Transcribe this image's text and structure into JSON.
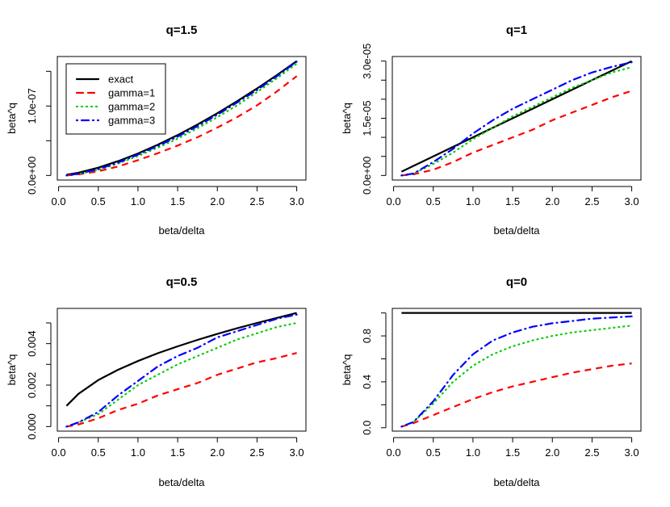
{
  "legend": {
    "entries": [
      {
        "label": "exact",
        "color": "#000000",
        "style": "solid"
      },
      {
        "label": "gamma=1",
        "color": "#FF0000",
        "style": "dashed"
      },
      {
        "label": "gamma=2",
        "color": "#00CD00",
        "style": "dotted"
      },
      {
        "label": "gamma=3",
        "color": "#0000FF",
        "style": "dotdash"
      }
    ],
    "placement": "top-left of first panel"
  },
  "chart_data": [
    {
      "type": "line",
      "title": "q=1.5",
      "xlabel": "beta/delta",
      "ylabel": "beta^q",
      "x": [
        0.1,
        0.25,
        0.5,
        0.75,
        1.0,
        1.25,
        1.5,
        1.75,
        2.0,
        2.25,
        2.5,
        2.75,
        3.0
      ],
      "xticks": [
        "0.0",
        "0.5",
        "1.0",
        "1.5",
        "2.0",
        "2.5",
        "3.0"
      ],
      "yticks": [
        0,
        5e-08,
        1e-07,
        1.5e-07
      ],
      "ytick_labels": [
        {
          "value": 0,
          "label": "0.0e+00"
        },
        {
          "value": 1e-07,
          "label": "1.0e-07"
        }
      ],
      "series": [
        {
          "name": "exact",
          "values": [
            1e-09,
            4e-09,
            1.12e-08,
            2.06e-08,
            3.17e-08,
            4.43e-08,
            5.82e-08,
            7.34e-08,
            8.97e-08,
            1.07e-07,
            1.253e-07,
            1.446e-07,
            1.647e-07
          ]
        },
        {
          "name": "gamma=1",
          "values": [
            0,
            1.5e-09,
            6e-09,
            1.3e-08,
            2.2e-08,
            3.2e-08,
            4.3e-08,
            5.5e-08,
            6.9e-08,
            8.4e-08,
            1.01e-07,
            1.21e-07,
            1.43e-07
          ]
        },
        {
          "name": "gamma=2",
          "values": [
            0,
            2e-09,
            8e-09,
            1.7e-08,
            2.8e-08,
            4e-08,
            5.3e-08,
            6.8e-08,
            8.4e-08,
            1.01e-07,
            1.2e-07,
            1.4e-07,
            1.61e-07
          ]
        },
        {
          "name": "gamma=3",
          "values": [
            0,
            2.5e-09,
            9e-09,
            1.85e-08,
            3e-08,
            4.25e-08,
            5.6e-08,
            7.1e-08,
            8.75e-08,
            1.05e-07,
            1.23e-07,
            1.43e-07,
            1.64e-07
          ]
        }
      ],
      "grid": false
    },
    {
      "type": "line",
      "title": "q=1",
      "xlabel": "beta/delta",
      "ylabel": "beta^q",
      "x": [
        0.1,
        0.25,
        0.5,
        0.75,
        1.0,
        1.25,
        1.5,
        1.75,
        2.0,
        2.25,
        2.5,
        2.75,
        3.0
      ],
      "xticks": [
        "0.0",
        "0.5",
        "1.0",
        "1.5",
        "2.0",
        "2.5",
        "3.0"
      ],
      "yticks": [
        0,
        5e-06,
        1e-05,
        1.5e-05,
        2e-05,
        2.5e-05,
        3e-05
      ],
      "ytick_labels": [
        {
          "value": 0,
          "label": "0.0e+00"
        },
        {
          "value": 1.5e-05,
          "label": "1.5e-05"
        },
        {
          "value": 3e-05,
          "label": "3.0e-05"
        }
      ],
      "series": [
        {
          "name": "exact",
          "values": [
            1e-06,
            2.5e-06,
            5e-06,
            7.5e-06,
            1e-05,
            1.25e-05,
            1.5e-05,
            1.75e-05,
            2e-05,
            2.25e-05,
            2.5e-05,
            2.75e-05,
            3e-05
          ]
        },
        {
          "name": "gamma=1",
          "values": [
            0,
            3e-07,
            1.5e-06,
            3.5e-06,
            6e-06,
            8e-06,
            1e-05,
            1.2e-05,
            1.45e-05,
            1.65e-05,
            1.85e-05,
            2.05e-05,
            2.22e-05
          ]
        },
        {
          "name": "gamma=2",
          "values": [
            0,
            5e-07,
            3e-06,
            6e-06,
            9.5e-06,
            1.25e-05,
            1.55e-05,
            1.8e-05,
            2.05e-05,
            2.3e-05,
            2.5e-05,
            2.7e-05,
            2.84e-05
          ]
        },
        {
          "name": "gamma=3",
          "values": [
            0,
            5e-07,
            3.5e-06,
            7e-06,
            1.1e-05,
            1.45e-05,
            1.75e-05,
            2e-05,
            2.25e-05,
            2.5e-05,
            2.7e-05,
            2.85e-05,
            2.97e-05
          ]
        }
      ],
      "grid": false
    },
    {
      "type": "line",
      "title": "q=0.5",
      "xlabel": "beta/delta",
      "ylabel": "beta^q",
      "x": [
        0.1,
        0.25,
        0.5,
        0.75,
        1.0,
        1.25,
        1.5,
        1.75,
        2.0,
        2.25,
        2.5,
        2.75,
        3.0
      ],
      "xticks": [
        "0.0",
        "0.5",
        "1.0",
        "1.5",
        "2.0",
        "2.5",
        "3.0"
      ],
      "yticks": [
        0,
        0.001,
        0.002,
        0.003,
        0.004,
        0.005
      ],
      "ytick_labels": [
        {
          "value": 0,
          "label": "0.000"
        },
        {
          "value": 0.002,
          "label": "0.002"
        },
        {
          "value": 0.004,
          "label": "0.004"
        }
      ],
      "series": [
        {
          "name": "exact",
          "values": [
            0.001,
            0.00158,
            0.00224,
            0.00274,
            0.00316,
            0.00354,
            0.00387,
            0.00418,
            0.00447,
            0.00474,
            0.005,
            0.00524,
            0.00548
          ]
        },
        {
          "name": "gamma=1",
          "values": [
            0,
            0.0001,
            0.0004,
            0.0008,
            0.0011,
            0.0015,
            0.0018,
            0.0021,
            0.0025,
            0.0028,
            0.0031,
            0.0033,
            0.00355
          ]
        },
        {
          "name": "gamma=2",
          "values": [
            0,
            0.0002,
            0.0006,
            0.0013,
            0.002,
            0.0025,
            0.003,
            0.0034,
            0.0038,
            0.0042,
            0.0045,
            0.0048,
            0.005
          ]
        },
        {
          "name": "gamma=3",
          "values": [
            0,
            0.0002,
            0.0007,
            0.0015,
            0.0022,
            0.0029,
            0.0034,
            0.0038,
            0.0043,
            0.0046,
            0.0049,
            0.0052,
            0.0054
          ]
        }
      ],
      "grid": false
    },
    {
      "type": "line",
      "title": "q=0",
      "xlabel": "beta/delta",
      "ylabel": "beta^q",
      "x": [
        0.1,
        0.25,
        0.5,
        0.75,
        1.0,
        1.25,
        1.5,
        1.75,
        2.0,
        2.25,
        2.5,
        2.75,
        3.0
      ],
      "xticks": [
        "0.0",
        "0.5",
        "1.0",
        "1.5",
        "2.0",
        "2.5",
        "3.0"
      ],
      "yticks": [
        0,
        0.2,
        0.4,
        0.6,
        0.8,
        1.0
      ],
      "ytick_labels": [
        {
          "value": 0,
          "label": "0.0"
        },
        {
          "value": 0.4,
          "label": "0.4"
        },
        {
          "value": 0.8,
          "label": "0.8"
        }
      ],
      "series": [
        {
          "name": "exact",
          "values": [
            1,
            1,
            1,
            1,
            1,
            1,
            1,
            1,
            1,
            1,
            1,
            1,
            1
          ]
        },
        {
          "name": "gamma=1",
          "values": [
            0.01,
            0.04,
            0.11,
            0.18,
            0.25,
            0.31,
            0.36,
            0.4,
            0.44,
            0.48,
            0.51,
            0.54,
            0.56
          ]
        },
        {
          "name": "gamma=2",
          "values": [
            0.01,
            0.05,
            0.21,
            0.4,
            0.54,
            0.64,
            0.71,
            0.76,
            0.8,
            0.83,
            0.85,
            0.87,
            0.89
          ]
        },
        {
          "name": "gamma=3",
          "values": [
            0.01,
            0.05,
            0.23,
            0.46,
            0.64,
            0.76,
            0.83,
            0.88,
            0.91,
            0.93,
            0.95,
            0.96,
            0.97
          ]
        }
      ],
      "grid": false
    }
  ]
}
